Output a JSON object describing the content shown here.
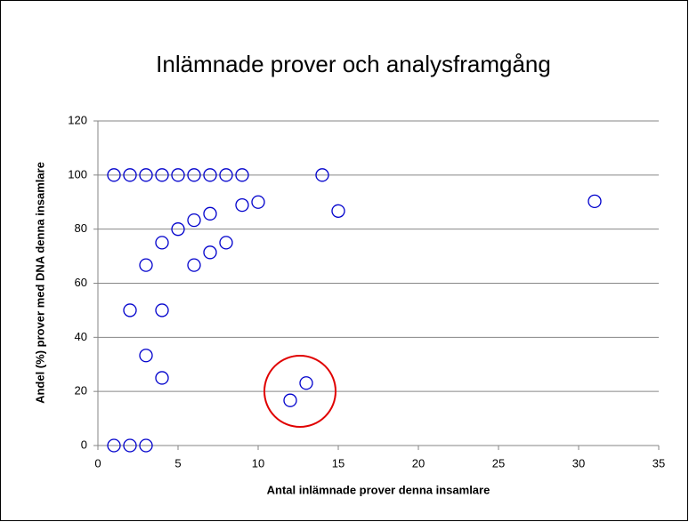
{
  "chart_data": {
    "type": "scatter",
    "title": "Inlämnade prover och analysframgång",
    "x_label": "Antal inlämnade prover denna insamlare",
    "y_label": "Andel (%) prover med DNA denna insamlare",
    "series": [
      {
        "color": "#0000cc",
        "x": [
          1,
          2,
          3,
          4,
          5,
          6,
          7,
          8,
          9,
          14,
          31,
          10,
          9,
          15,
          7,
          6,
          5,
          4,
          8,
          7,
          3,
          6,
          2,
          4,
          3,
          4,
          13,
          12,
          1,
          2,
          3
        ],
        "values": [
          100,
          100,
          100,
          100,
          100,
          100,
          100,
          100,
          100,
          100,
          90.3,
          90,
          88.9,
          86.7,
          85.7,
          83.3,
          80,
          75,
          75,
          71.4,
          66.7,
          66.7,
          50,
          50,
          33.3,
          25,
          23.1,
          16.7,
          0,
          0,
          0
        ]
      }
    ],
    "xlim": [
      0,
      35
    ],
    "xticks": [
      0,
      5,
      10,
      15,
      20,
      25,
      30,
      35
    ],
    "ylim": [
      0,
      120
    ],
    "yticks": [
      0,
      20,
      40,
      60,
      80,
      100,
      120
    ],
    "grid": true
  }
}
